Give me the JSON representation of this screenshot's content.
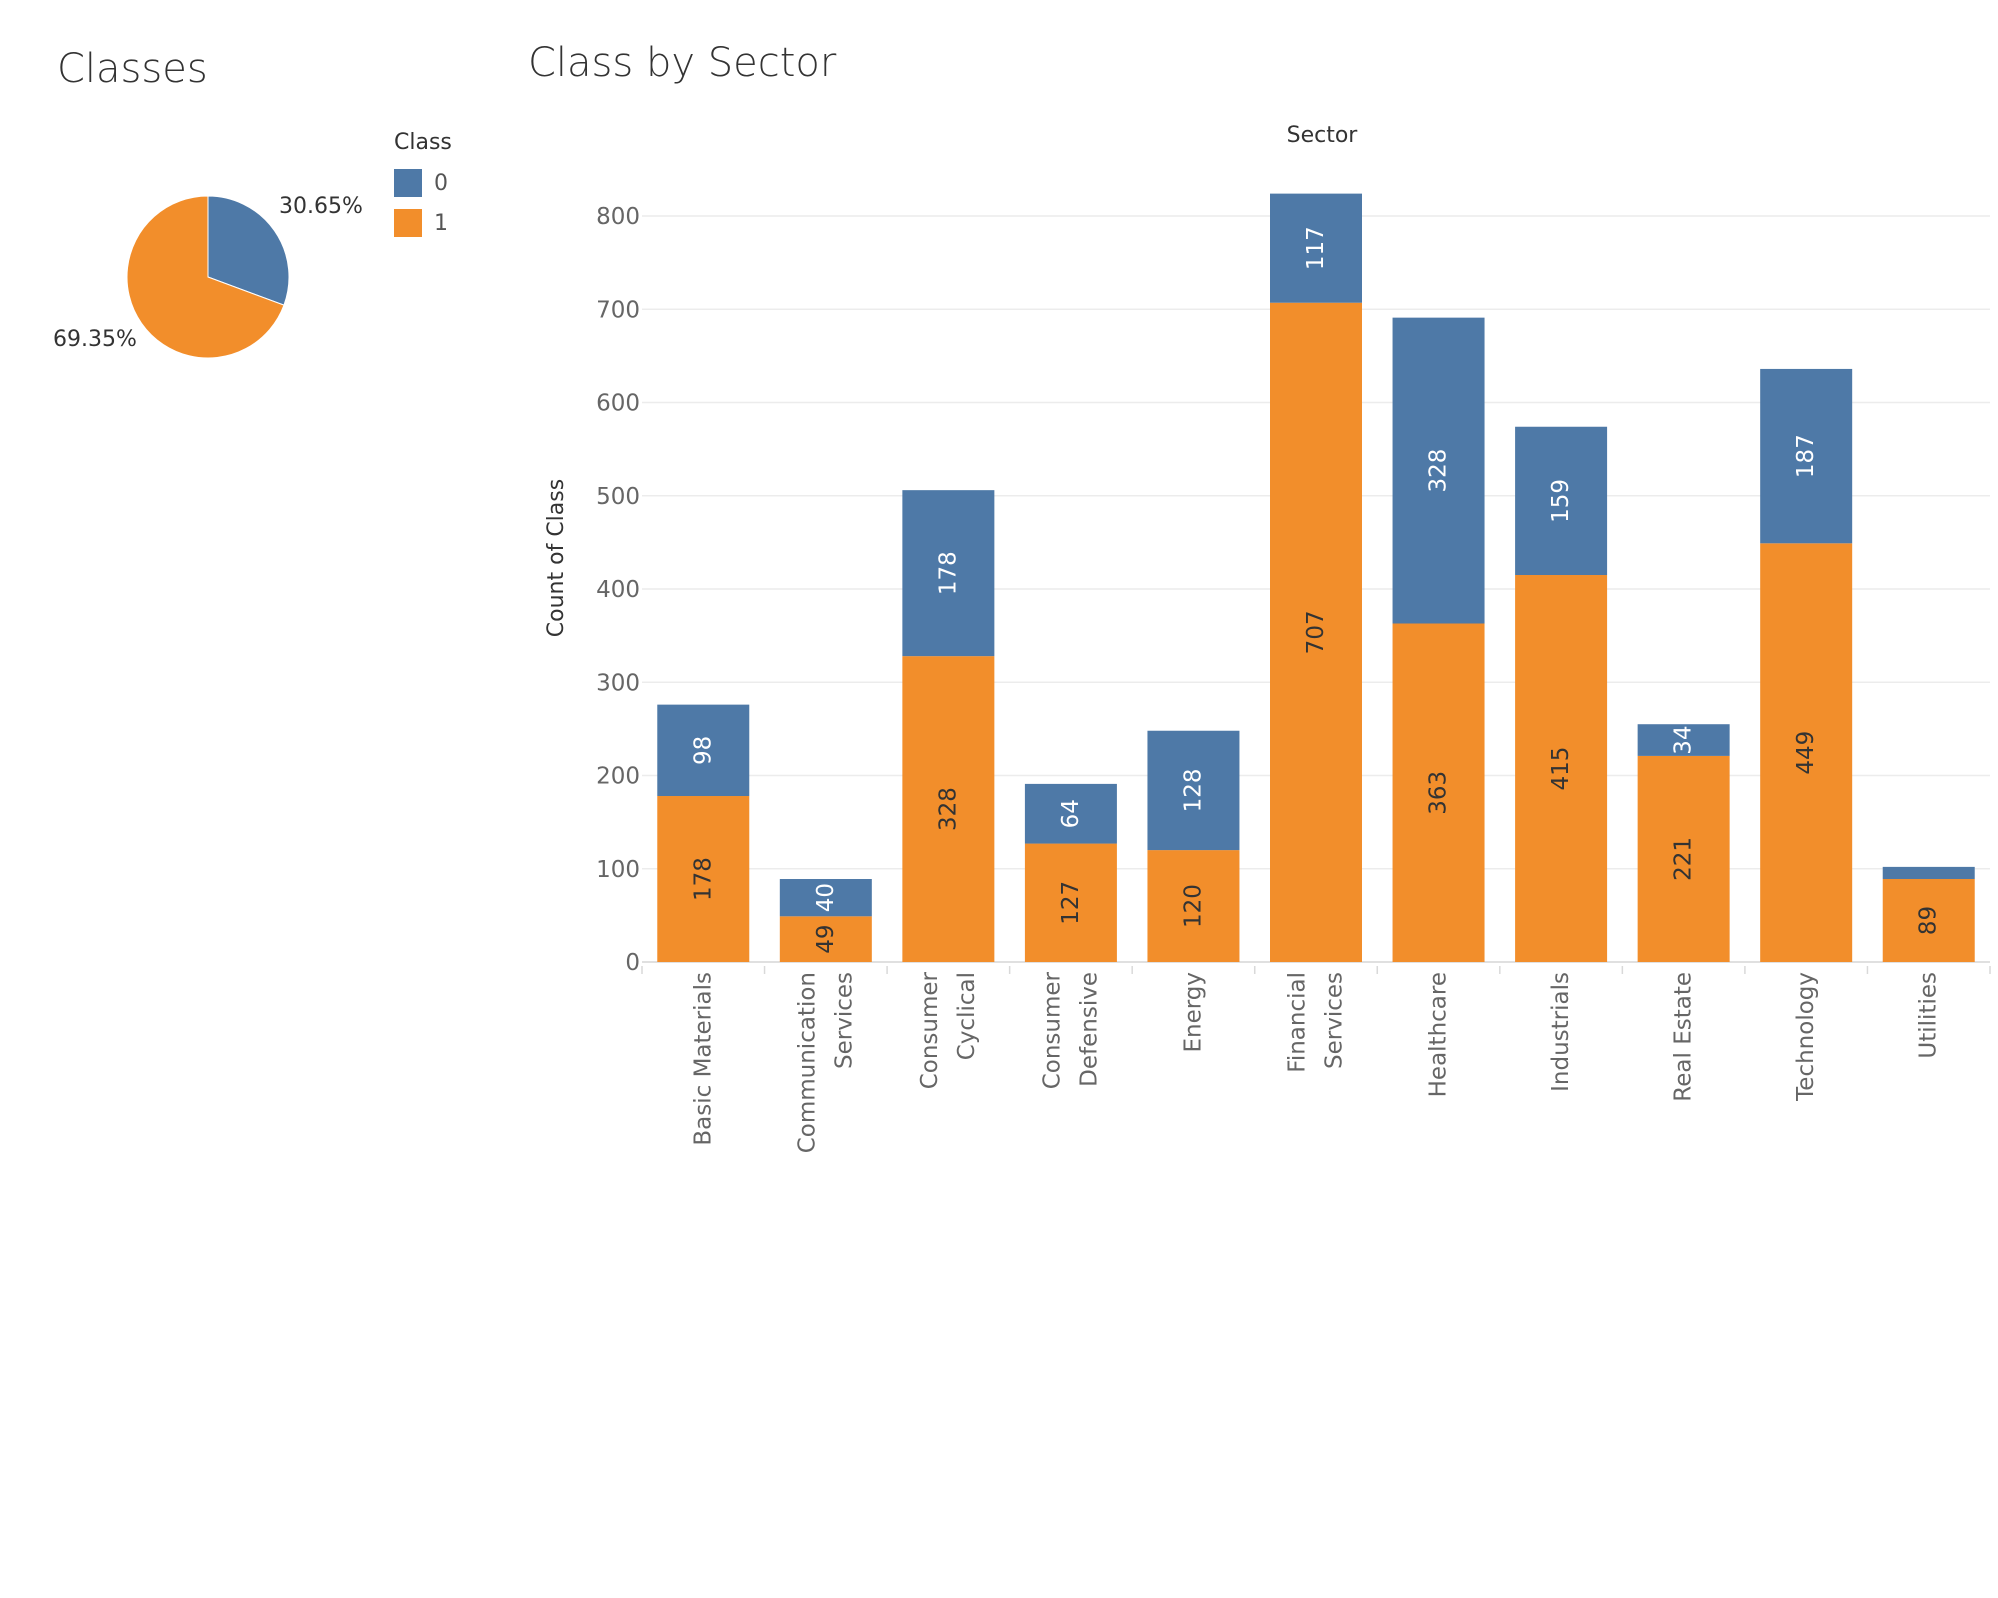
{
  "pie": {
    "title": "Classes",
    "legend_title": "Class",
    "legend": [
      {
        "label": "0",
        "color": "#4E79A7"
      },
      {
        "label": "1",
        "color": "#F28E2B"
      }
    ]
  },
  "bar": {
    "title": "Class by Sector"
  },
  "chart_data": [
    {
      "type": "pie",
      "title": "Classes",
      "slices": [
        {
          "name": "0",
          "value": 30.65,
          "label": "30.65%",
          "color": "#4E79A7"
        },
        {
          "name": "1",
          "value": 69.35,
          "label": "69.35%",
          "color": "#F28E2B"
        }
      ],
      "legend": {
        "title": "Class",
        "placement": "right"
      }
    },
    {
      "type": "bar",
      "stacked": true,
      "title": "Class by Sector",
      "xlabel": "Sector",
      "ylabel": "Count of Class",
      "ylim": [
        0,
        850
      ],
      "yticks": [
        0,
        100,
        200,
        300,
        400,
        500,
        600,
        700,
        800
      ],
      "grid": true,
      "categories": [
        [
          "Basic Materials"
        ],
        [
          "Communication",
          "Services"
        ],
        [
          "Consumer",
          "Cyclical"
        ],
        [
          "Consumer",
          "Defensive"
        ],
        [
          "Energy"
        ],
        [
          "Financial",
          "Services"
        ],
        [
          "Healthcare"
        ],
        [
          "Industrials"
        ],
        [
          "Real Estate"
        ],
        [
          "Technology"
        ],
        [
          "Utilities"
        ]
      ],
      "series": [
        {
          "name": "1",
          "color": "#F28E2B",
          "label_color": "#333333",
          "values": [
            178,
            49,
            328,
            127,
            120,
            707,
            363,
            415,
            221,
            449,
            89
          ]
        },
        {
          "name": "0",
          "color": "#4E79A7",
          "label_color": "#ffffff",
          "values": [
            98,
            40,
            178,
            64,
            128,
            117,
            328,
            159,
            34,
            187,
            13
          ]
        }
      ],
      "show_labels": [
        [
          true,
          true,
          true,
          true,
          true,
          true,
          true,
          true,
          true,
          true,
          true
        ],
        [
          true,
          true,
          true,
          true,
          true,
          true,
          true,
          true,
          true,
          true,
          false
        ]
      ]
    }
  ]
}
